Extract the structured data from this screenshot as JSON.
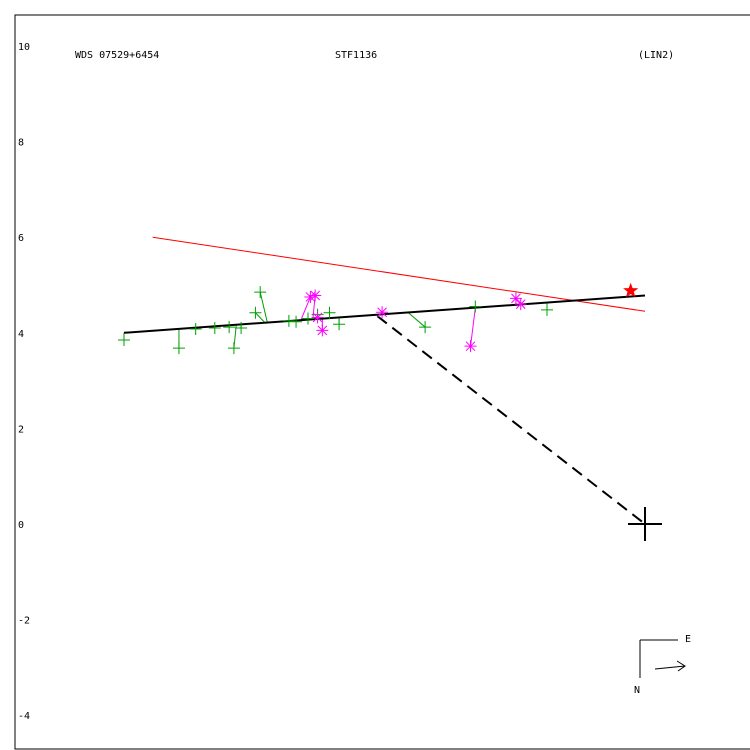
{
  "header": {
    "left": "WDS 07529+6454",
    "center": "STF1136",
    "right": "(LIN2)"
  },
  "compass": {
    "east_label": "E",
    "north_label": "N"
  },
  "chart_data": {
    "type": "scatter",
    "xlim": [
      -13.2,
      2.2
    ],
    "ylim": [
      -4.7,
      10.7
    ],
    "y_ticks": [
      "10",
      "8",
      "6",
      "4",
      "2",
      "0",
      "-2",
      "-4"
    ],
    "y_tick_values": [
      10,
      8,
      6,
      4,
      2,
      0,
      -2,
      -4
    ],
    "colors": {
      "fit_line": "#000000",
      "comparison_line": "#ff0000",
      "star": "#ff0000",
      "plus_obs": "#00a000",
      "star_obs": "#ff00ff",
      "origin": "#000000"
    },
    "fit_line": {
      "x": [
        -10.9,
        0.0
      ],
      "y": [
        4.0,
        4.78
      ]
    },
    "comparison_line": {
      "x": [
        -10.3,
        0.0
      ],
      "y": [
        6.0,
        4.45
      ]
    },
    "dashed_line": {
      "x": [
        -5.6,
        0.0
      ],
      "y": [
        4.35,
        0.0
      ]
    },
    "end_marker": {
      "x": -0.3,
      "y": 4.88
    },
    "origin_marker": {
      "x": 0.0,
      "y": 0.0
    },
    "plus_obs": [
      {
        "x": -10.9,
        "y": 3.85,
        "fx": -10.9,
        "fy": 4.0
      },
      {
        "x": -9.75,
        "y": 3.68,
        "fx": -9.75,
        "fy": 4.08
      },
      {
        "x": -9.4,
        "y": 4.08,
        "fx": -9.4,
        "fy": 4.11
      },
      {
        "x": -9.0,
        "y": 4.1,
        "fx": -9.0,
        "fy": 4.13
      },
      {
        "x": -8.7,
        "y": 4.12,
        "fx": -8.7,
        "fy": 4.16
      },
      {
        "x": -8.6,
        "y": 3.68,
        "fx": -8.55,
        "fy": 4.17
      },
      {
        "x": -8.45,
        "y": 4.1,
        "fx": -8.45,
        "fy": 4.17
      },
      {
        "x": -8.15,
        "y": 4.42,
        "fx": -7.95,
        "fy": 4.21
      },
      {
        "x": -8.05,
        "y": 4.85,
        "fx": -7.9,
        "fy": 4.21
      },
      {
        "x": -7.45,
        "y": 4.25,
        "fx": -7.45,
        "fy": 4.24
      },
      {
        "x": -7.3,
        "y": 4.23,
        "fx": -7.3,
        "fy": 4.25
      },
      {
        "x": -7.05,
        "y": 4.3,
        "fx": -7.05,
        "fy": 4.27
      },
      {
        "x": -6.85,
        "y": 4.38,
        "fx": -6.85,
        "fy": 4.29
      },
      {
        "x": -6.6,
        "y": 4.42,
        "fx": -6.6,
        "fy": 4.31
      },
      {
        "x": -6.4,
        "y": 4.18,
        "fx": -6.4,
        "fy": 4.32
      },
      {
        "x": -4.6,
        "y": 4.12,
        "fx": -4.95,
        "fy": 4.42
      },
      {
        "x": -3.55,
        "y": 4.55,
        "fx": -3.55,
        "fy": 4.52
      },
      {
        "x": -2.05,
        "y": 4.48,
        "fx": -2.05,
        "fy": 4.63
      }
    ],
    "star_obs": [
      {
        "x": -7.0,
        "y": 4.75,
        "fx": -7.2,
        "fy": 4.26
      },
      {
        "x": -6.9,
        "y": 4.78,
        "fx": -6.95,
        "fy": 4.28
      },
      {
        "x": -6.85,
        "y": 4.32,
        "fx": -6.85,
        "fy": 4.29
      },
      {
        "x": -6.75,
        "y": 4.05,
        "fx": -6.75,
        "fy": 4.3
      },
      {
        "x": -5.5,
        "y": 4.43,
        "fx": -5.5,
        "fy": 4.38
      },
      {
        "x": -3.65,
        "y": 3.72,
        "fx": -3.55,
        "fy": 4.52
      },
      {
        "x": -2.7,
        "y": 4.72,
        "fx": -2.7,
        "fy": 4.59
      },
      {
        "x": -2.6,
        "y": 4.6,
        "fx": -2.6,
        "fy": 4.6
      }
    ]
  }
}
